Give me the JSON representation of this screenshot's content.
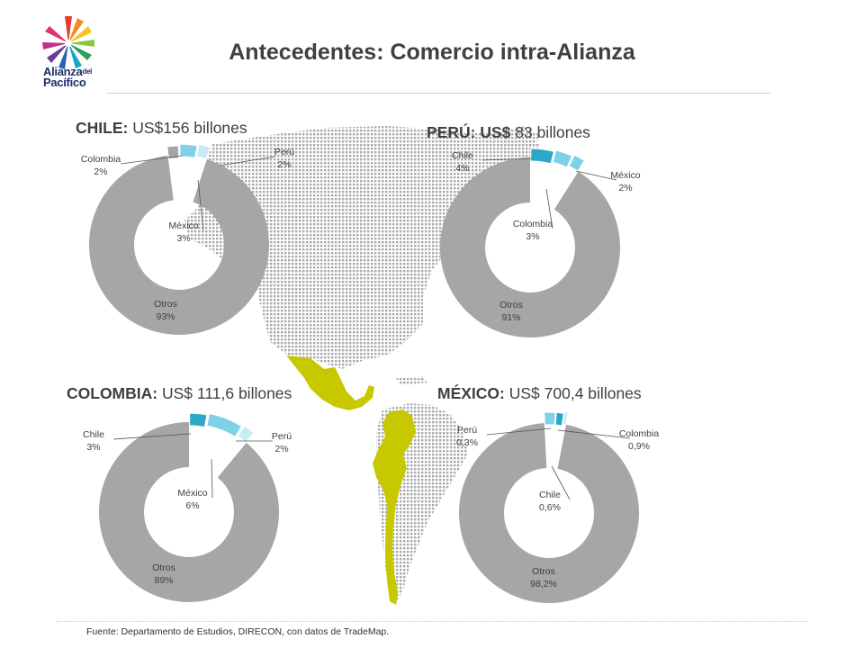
{
  "logo": {
    "line1": "Alianza",
    "line1_small": "del",
    "line2": "Pacífico"
  },
  "title": "Antecedentes: Comercio intra-Alianza",
  "colors": {
    "otros": "#a6a6a6",
    "chile": "#2aa8c6",
    "colombia": "#7fd1e8",
    "peru": "#c7ecf5",
    "mexico": "#7fd1e8",
    "map_highlight": "#c8c800",
    "map_dots": "#a8a8a8"
  },
  "chart_data": [
    {
      "type": "pie",
      "country": "CHILE:",
      "total": "US$156 billones",
      "slices": [
        {
          "label": "Colombia",
          "value_label": "2%",
          "value": 2
        },
        {
          "label": "Perú",
          "value_label": "2%",
          "value": 2
        },
        {
          "label": "Otros",
          "value_label": "93%",
          "value": 93
        },
        {
          "label": "México",
          "value_label": "3%",
          "value": 3
        }
      ]
    },
    {
      "type": "pie",
      "country": "PERÚ:",
      "total_bold": "US$",
      "total": "83 billones",
      "slices": [
        {
          "label": "Chile",
          "value_label": "4%",
          "value": 4
        },
        {
          "label": "Colombia",
          "value_label": "3%",
          "value": 3
        },
        {
          "label": "México",
          "value_label": "2%",
          "value": 2
        },
        {
          "label": "Otros",
          "value_label": "91%",
          "value": 91
        }
      ]
    },
    {
      "type": "pie",
      "country": "COLOMBIA:",
      "total": "US$ 111,6 billones",
      "slices": [
        {
          "label": "Chile",
          "value_label": "3%",
          "value": 3
        },
        {
          "label": "México",
          "value_label": "6%",
          "value": 6
        },
        {
          "label": "Perú",
          "value_label": "2%",
          "value": 2
        },
        {
          "label": "Otros",
          "value_label": "89%",
          "value": 89
        }
      ]
    },
    {
      "type": "pie",
      "country": "MÉXICO:",
      "total": "US$ 700,4 billones",
      "slices": [
        {
          "label": "Perú",
          "value_label": "0,3%",
          "value": 0.3
        },
        {
          "label": "Chile",
          "value_label": "0,6%",
          "value": 0.6
        },
        {
          "label": "Colombia",
          "value_label": "0,9%",
          "value": 0.9
        },
        {
          "label": "Otros",
          "value_label": "98,2%",
          "value": 98.2
        }
      ]
    }
  ],
  "footer": "Fuente: Departamento de Estudios, DIRECON, con datos de TradeMap."
}
